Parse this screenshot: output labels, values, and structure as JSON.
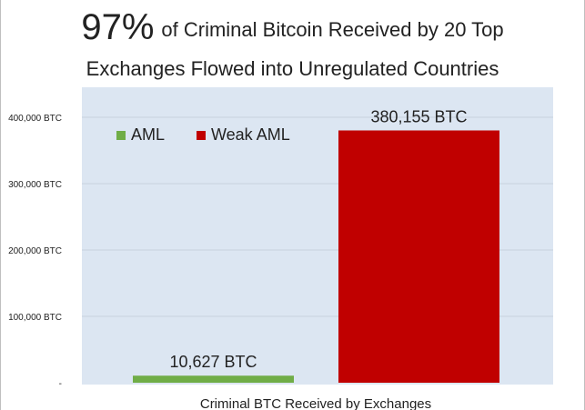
{
  "title": {
    "highlight": "97%",
    "rest": "of Criminal Bitcoin Received by 20 Top",
    "line2": "Exchanges Flowed into Unregulated Countries"
  },
  "chart_data": {
    "type": "bar",
    "categories": [
      "AML",
      "Weak AML"
    ],
    "values": [
      10627,
      380155
    ],
    "data_labels": [
      "10,627 BTC",
      "380,155 BTC"
    ],
    "colors": [
      "#70ad47",
      "#c00000"
    ],
    "ylim": [
      0,
      400000
    ],
    "yticks": [
      0,
      100000,
      200000,
      300000,
      400000
    ],
    "ytick_labels": [
      "-",
      "100,000 BTC",
      "200,000 BTC",
      "300,000 BTC",
      "400,000 BTC"
    ],
    "xlabel": "Criminal BTC Received by Exchanges",
    "legend": {
      "position": "top-left",
      "entries": [
        {
          "label": "AML",
          "color": "#70ad47"
        },
        {
          "label": "Weak AML",
          "color": "#c00000"
        }
      ]
    },
    "plot_background": "#dce6f2",
    "grid": true
  }
}
